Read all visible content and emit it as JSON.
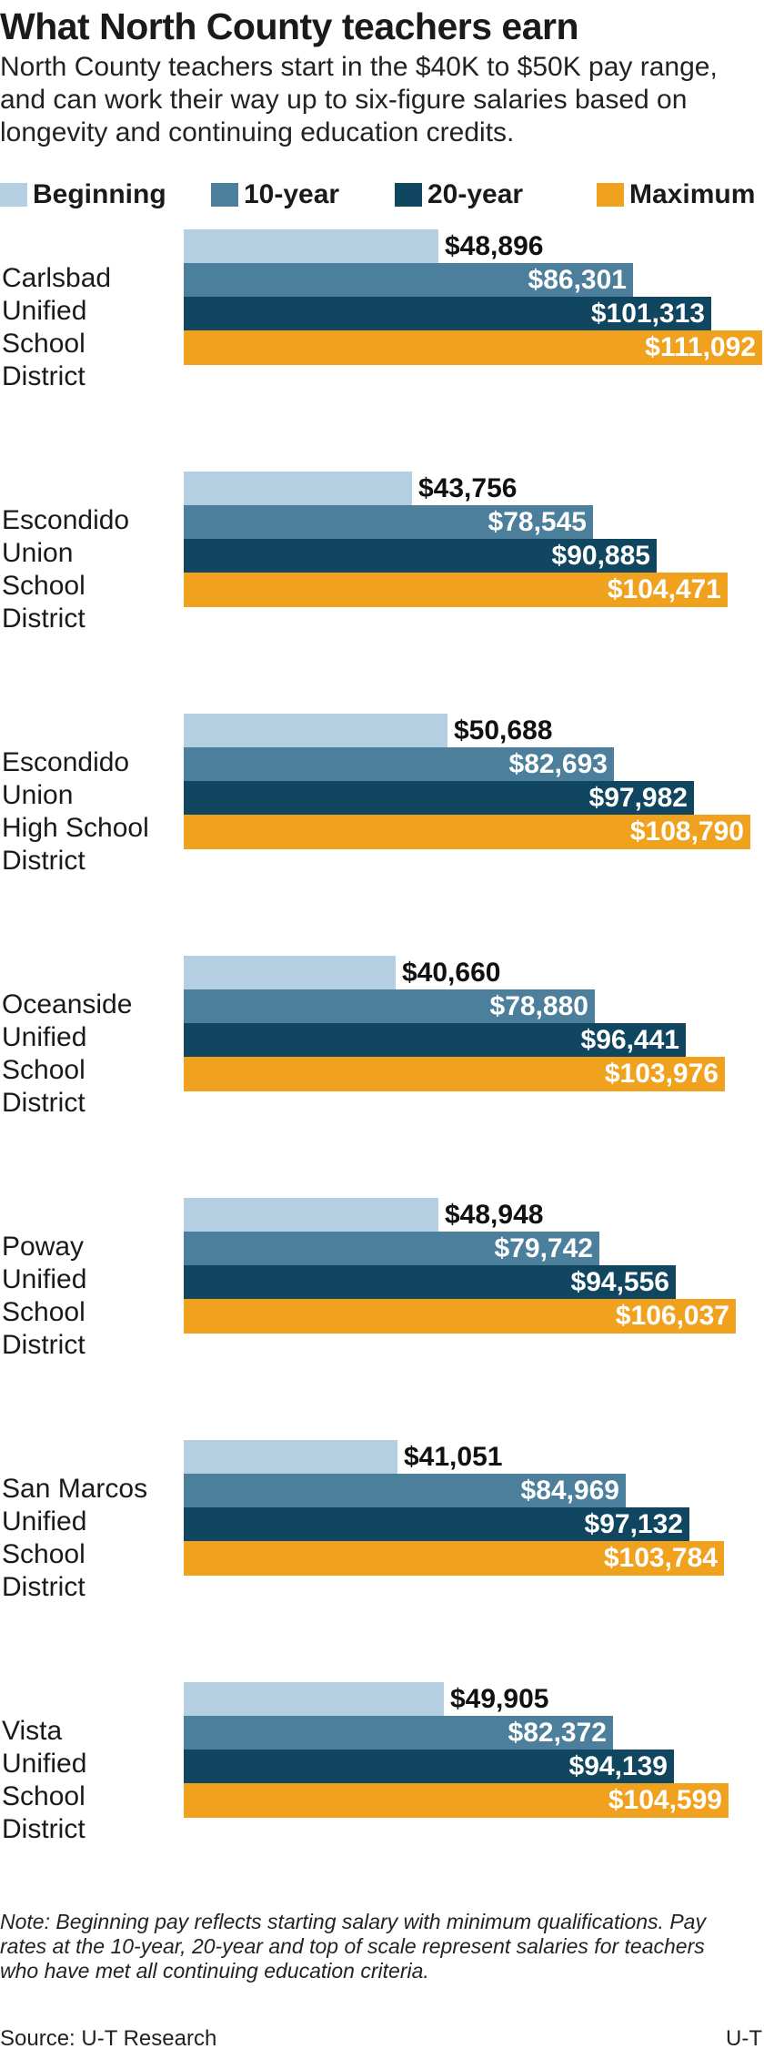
{
  "title": "What North County teachers earn",
  "subtitle": "North County teachers start in the $40K to $50K pay range, and can work their way up to six-figure salaries based on longevity and continuing education credits.",
  "legend": [
    {
      "label": "Beginning",
      "color": "#b4cfe2"
    },
    {
      "label": "10-year",
      "color": "#4b7f9b"
    },
    {
      "label": "20-year",
      "color": "#10465f"
    },
    {
      "label": "Maximum",
      "color": "#f0a21e"
    }
  ],
  "chart_data": {
    "type": "bar",
    "orientation": "horizontal",
    "title": "What North County teachers earn",
    "xlabel": "",
    "ylabel": "",
    "xlim": [
      0,
      111092
    ],
    "grid": false,
    "legend_position": "top",
    "categories": [
      "Carlsbad\nUnified\nSchool\nDistrict",
      "Escondido\nUnion\nSchool\nDistrict",
      "Escondido\nUnion\nHigh School\nDistrict",
      "Oceanside\nUnified\nSchool\nDistrict",
      "Poway\nUnified\nSchool\nDistrict",
      "San Marcos\nUnified\nSchool\nDistrict",
      "Vista\nUnified\nSchool\nDistrict"
    ],
    "series": [
      {
        "name": "Beginning",
        "values": [
          48896,
          43756,
          50688,
          40660,
          48948,
          41051,
          49905
        ],
        "labels": [
          "$48,896",
          "$43,756",
          "$50,688",
          "$40,660",
          "$48,948",
          "$41,051",
          "$49,905"
        ]
      },
      {
        "name": "10-year",
        "values": [
          86301,
          78545,
          82693,
          78880,
          79742,
          84969,
          82372
        ],
        "labels": [
          "$86,301",
          "$78,545",
          "$82,693",
          "$78,880",
          "$79,742",
          "$84,969",
          "$82,372"
        ]
      },
      {
        "name": "20-year",
        "values": [
          101313,
          90885,
          97982,
          96441,
          94556,
          97132,
          94139
        ],
        "labels": [
          "$101,313",
          "$90,885",
          "$97,982",
          "$96,441",
          "$94,556",
          "$97,132",
          "$94,139"
        ]
      },
      {
        "name": "Maximum",
        "values": [
          111092,
          104471,
          108790,
          103976,
          106037,
          103784,
          104599
        ],
        "labels": [
          "$111,092",
          "$104,471",
          "$108,790",
          "$103,976",
          "$106,037",
          "$103,784",
          "$104,599"
        ]
      }
    ]
  },
  "note": "Note: Beginning pay reflects starting salary with minimum qualifications. Pay rates at the 10-year, 20-year and top of scale represent salaries for teachers who have met all continuing education criteria.",
  "footer": {
    "source": "Source: U-T Research",
    "credit": "U-T"
  }
}
